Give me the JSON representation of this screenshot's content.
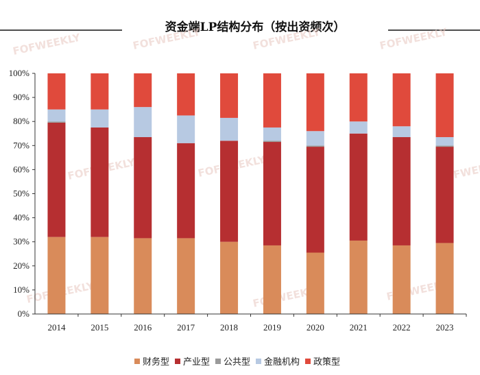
{
  "chart_data": {
    "type": "bar",
    "stacked": true,
    "title": "资金端LP结构分布（按出资频次）",
    "categories": [
      "2014",
      "2015",
      "2016",
      "2017",
      "2018",
      "2019",
      "2020",
      "2021",
      "2022",
      "2023"
    ],
    "ylim": [
      0,
      100
    ],
    "yticks": [
      "0%",
      "10%",
      "20%",
      "30%",
      "40%",
      "50%",
      "60%",
      "70%",
      "80%",
      "90%",
      "100%"
    ],
    "series": [
      {
        "name": "财务型",
        "color": "#d98b5a",
        "values": [
          32,
          32,
          31.5,
          31.5,
          30,
          28.5,
          25.5,
          30.5,
          28.5,
          29.5
        ]
      },
      {
        "name": "产业型",
        "color": "#b62f31",
        "values": [
          47.5,
          45.5,
          42,
          39.5,
          42,
          43,
          44,
          44.5,
          45,
          40
        ]
      },
      {
        "name": "公共型",
        "color": "#9a9a9a",
        "values": [
          0.5,
          0,
          0,
          0,
          0,
          0.5,
          0.5,
          0,
          0,
          0.5
        ]
      },
      {
        "name": "金融机构",
        "color": "#b7c9e2",
        "values": [
          5,
          7.5,
          12.5,
          11.5,
          9.5,
          5.5,
          6,
          5,
          4.5,
          3.5
        ]
      },
      {
        "name": "政策型",
        "color": "#e04a3c",
        "values": [
          15,
          15,
          14,
          17.5,
          18.5,
          22.5,
          24,
          20,
          22,
          26.5
        ]
      }
    ],
    "legend_position": "bottom",
    "grid": false
  },
  "watermark": "FOFWEEKLY"
}
